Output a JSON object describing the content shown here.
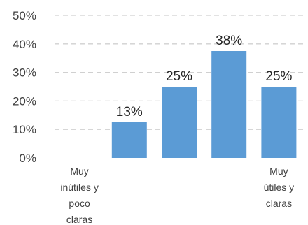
{
  "chart_data": {
    "type": "bar",
    "categories": [
      [
        "Muy",
        "inútiles y",
        "poco",
        "claras"
      ],
      [],
      [],
      [],
      [
        "Muy",
        "útiles y",
        "claras"
      ]
    ],
    "values": [
      0,
      12.5,
      25,
      37.5,
      25
    ],
    "data_labels": [
      "",
      "13%",
      "25%",
      "38%",
      "25%"
    ],
    "y_ticks": [
      "0%",
      "10%",
      "20%",
      "30%",
      "40%",
      "50%"
    ],
    "ylim": [
      0,
      50
    ],
    "grid": true,
    "legend": "none",
    "title": "",
    "xlabel": "",
    "ylabel": "",
    "bar_color": "#5b9bd5",
    "grid_color": "#d0d0d0"
  }
}
